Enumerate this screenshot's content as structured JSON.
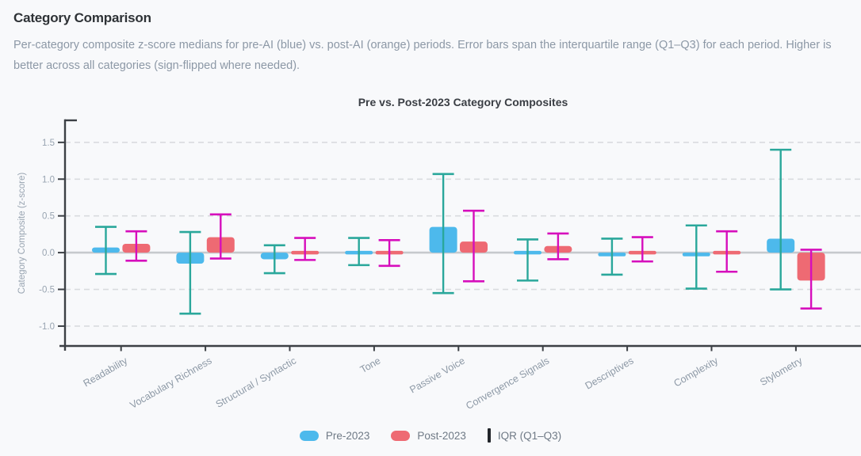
{
  "page": {
    "title": "Category Comparison",
    "description": "Per-category composite z-score medians for pre-AI (blue) vs. post-AI (orange) periods. Error bars span the interquartile range (Q1–Q3) for each period. Higher is better across all categories (sign-flipped where needed)."
  },
  "chart_data": {
    "type": "bar",
    "title": "Pre vs. Post-2023 Category Composites",
    "xlabel": "",
    "ylabel": "Category Composite (z-score)",
    "ylim": [
      -1.27,
      1.8
    ],
    "yticks": [
      1.5,
      1.0,
      0.5,
      0.0,
      -0.5,
      -1.0
    ],
    "grid": "horizontal dashed gridlines, solid zero line",
    "legend_position": "bottom center",
    "iqr_label": "IQR (Q1–Q3)",
    "categories": [
      "Readability",
      "Vocabulary Richness",
      "Structural / Syntactic",
      "Tone",
      "Passive Voice",
      "Convergence Signals",
      "Descriptives",
      "Complexity",
      "Stylometry"
    ],
    "series": [
      {
        "name": "Pre-2023",
        "color": "#4db9ec",
        "error_color": "#2aa79b",
        "median": [
          0.07,
          -0.15,
          -0.09,
          0.01,
          0.35,
          -0.01,
          -0.05,
          -0.05,
          0.19
        ],
        "q1": [
          -0.29,
          -0.83,
          -0.28,
          -0.17,
          -0.55,
          -0.38,
          -0.3,
          -0.49,
          -0.5
        ],
        "q3": [
          0.35,
          0.28,
          0.1,
          0.2,
          1.07,
          0.18,
          0.19,
          0.37,
          1.4
        ]
      },
      {
        "name": "Post-2023",
        "color": "#ee6a73",
        "error_color": "#d60ebc",
        "median": [
          0.12,
          0.21,
          0.04,
          -0.01,
          0.15,
          0.09,
          0.04,
          0.04,
          -0.38
        ],
        "q1": [
          -0.11,
          -0.08,
          -0.1,
          -0.18,
          -0.39,
          -0.09,
          -0.12,
          -0.26,
          -0.76
        ],
        "q3": [
          0.29,
          0.52,
          0.2,
          0.17,
          0.57,
          0.26,
          0.21,
          0.29,
          0.04
        ]
      }
    ],
    "palette": {
      "grid": "#d9dbdf",
      "zero_line": "#c6c9cd",
      "axis": "#3c4045",
      "tick_label": "#98a4b1",
      "category_label": "#8d99a6",
      "iqr_legend_mark": "#22262b"
    }
  }
}
